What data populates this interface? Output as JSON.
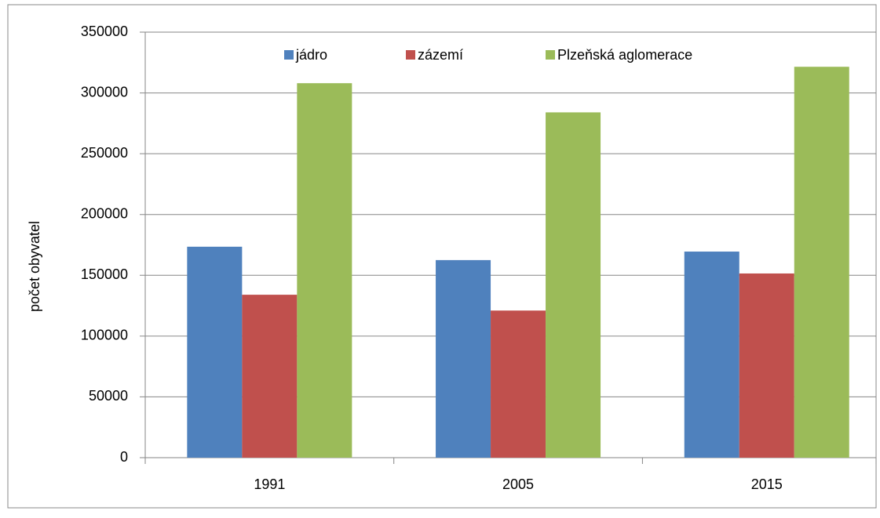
{
  "chart_data": {
    "type": "bar",
    "y_label": "počet obyvatel",
    "categories": [
      "1991",
      "2005",
      "2015"
    ],
    "series": [
      {
        "name": "jádro",
        "color": "#4f81bd",
        "values": [
          173500,
          162500,
          169500
        ]
      },
      {
        "name": "zázemí",
        "color": "#c0504d",
        "values": [
          134000,
          121000,
          151500
        ]
      },
      {
        "name": "Plzeňská aglomerace",
        "color": "#9bbb59",
        "values": [
          308000,
          284000,
          321500
        ]
      }
    ],
    "ylim": [
      0,
      350000
    ],
    "yticks": [
      0,
      50000,
      100000,
      150000,
      200000,
      250000,
      300000,
      350000
    ],
    "grid": true,
    "legend": "top"
  }
}
